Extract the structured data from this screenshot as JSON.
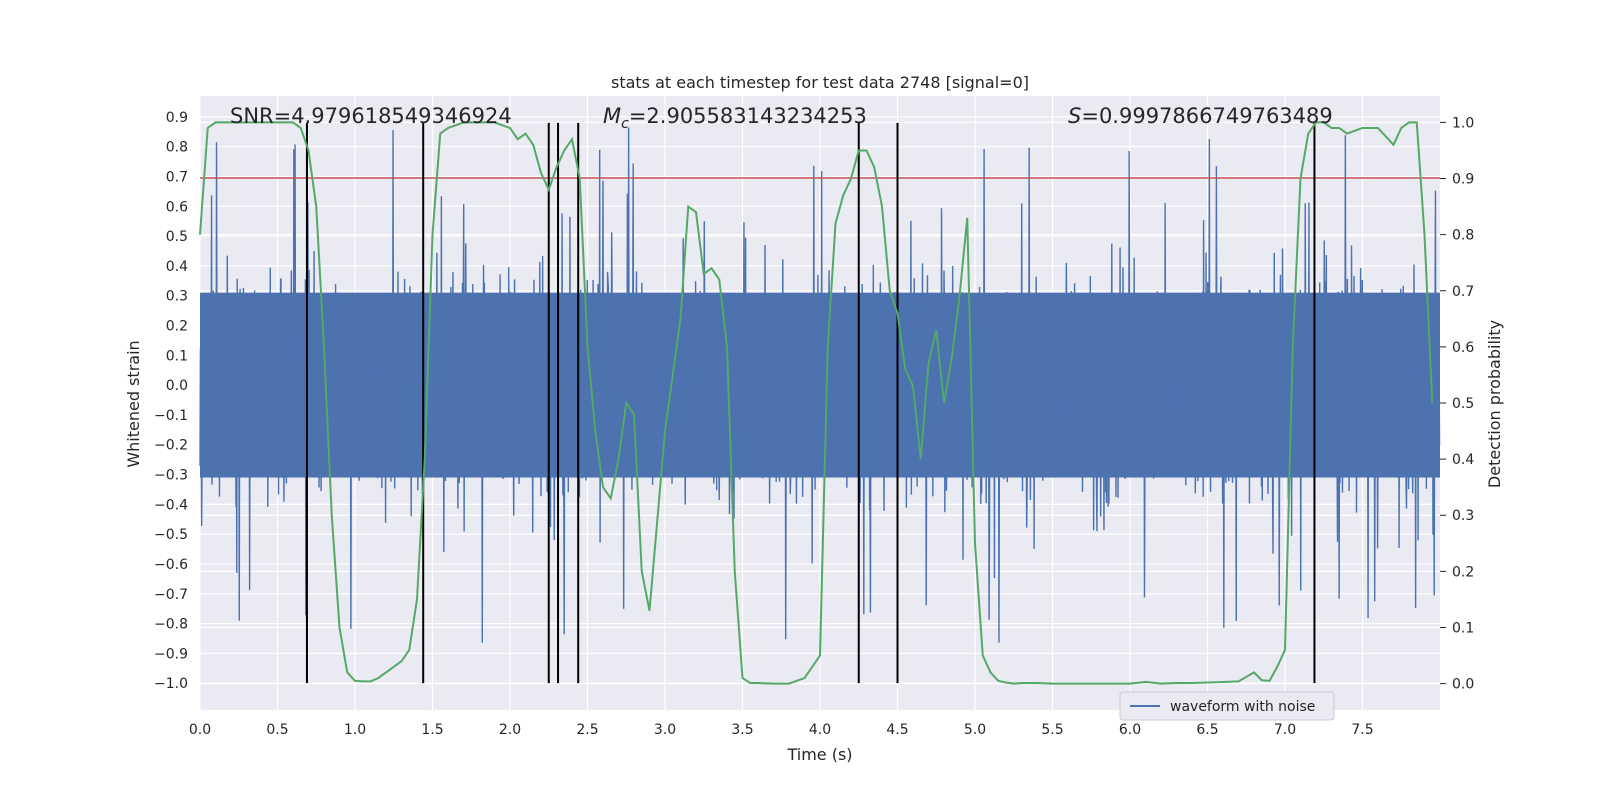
{
  "chart_data": {
    "type": "line",
    "title": "stats at each timestep for test data 2748 [signal=0]",
    "xlabel": "Time (s)",
    "ylabel": "Whitened strain",
    "y2label": "Detection probability",
    "xlim": [
      0.0,
      8.0
    ],
    "ylim": [
      -1.09,
      0.97
    ],
    "y2lim": [
      -0.047,
      1.047
    ],
    "x_ticks": [
      "0.0",
      "0.5",
      "1.0",
      "1.5",
      "2.0",
      "2.5",
      "3.0",
      "3.5",
      "4.0",
      "4.5",
      "5.0",
      "5.5",
      "6.0",
      "6.5",
      "7.0",
      "7.5"
    ],
    "y_ticks": [
      "0.9",
      "0.8",
      "0.7",
      "0.6",
      "0.5",
      "0.4",
      "0.3",
      "0.2",
      "0.1",
      "0.0",
      "−0.1",
      "−0.2",
      "−0.3",
      "−0.4",
      "−0.5",
      "−0.6",
      "−0.7",
      "−0.8",
      "−0.9",
      "−1.0"
    ],
    "y2_ticks": [
      "1.0",
      "0.9",
      "0.8",
      "0.7",
      "0.6",
      "0.5",
      "0.4",
      "0.3",
      "0.2",
      "0.1",
      "0.0"
    ],
    "grid": true,
    "legend_position": "lower-right",
    "annotations": {
      "snr": "SNR=4.979618549346924",
      "mc_symbol": "M",
      "mc_sub": "c",
      "mc_value": "=2.905583143234253",
      "s_symbol": "S",
      "s_value": "=0.9997866749763489"
    },
    "series": [
      {
        "name": "waveform with noise",
        "axis": "left",
        "color": "#4c72b0",
        "noise_envelope": {
          "body_upper": 0.31,
          "body_lower": -0.31,
          "typical_peak": 0.5,
          "max": 0.87,
          "min": -0.99
        }
      },
      {
        "name": "",
        "axis": "right",
        "color": "#55a868",
        "x": [
          0.0,
          0.05,
          0.1,
          0.2,
          0.3,
          0.4,
          0.5,
          0.6,
          0.65,
          0.7,
          0.75,
          0.8,
          0.85,
          0.9,
          0.95,
          1.0,
          1.05,
          1.1,
          1.15,
          1.2,
          1.25,
          1.3,
          1.35,
          1.4,
          1.45,
          1.5,
          1.55,
          1.6,
          1.7,
          1.8,
          1.9,
          2.0,
          2.05,
          2.1,
          2.15,
          2.2,
          2.25,
          2.3,
          2.35,
          2.4,
          2.45,
          2.5,
          2.55,
          2.6,
          2.65,
          2.7,
          2.75,
          2.8,
          2.85,
          2.9,
          3.0,
          3.1,
          3.15,
          3.2,
          3.25,
          3.3,
          3.35,
          3.4,
          3.45,
          3.5,
          3.55,
          3.6,
          3.7,
          3.8,
          3.9,
          4.0,
          4.05,
          4.1,
          4.15,
          4.2,
          4.25,
          4.3,
          4.35,
          4.4,
          4.45,
          4.5,
          4.55,
          4.6,
          4.65,
          4.7,
          4.75,
          4.8,
          4.85,
          4.9,
          4.95,
          5.0,
          5.05,
          5.1,
          5.15,
          5.2,
          5.25,
          5.3,
          5.4,
          5.5,
          5.6,
          5.7,
          5.8,
          5.9,
          6.0,
          6.1,
          6.2,
          6.3,
          6.4,
          6.5,
          6.6,
          6.7,
          6.8,
          6.85,
          6.9,
          6.95,
          7.0,
          7.05,
          7.1,
          7.15,
          7.2,
          7.25,
          7.3,
          7.35,
          7.4,
          7.5,
          7.6,
          7.7,
          7.75,
          7.8,
          7.85,
          7.9,
          7.95
        ],
        "values": [
          0.8,
          0.99,
          1.0,
          1.0,
          1.0,
          1.0,
          1.0,
          1.0,
          0.99,
          0.95,
          0.85,
          0.6,
          0.3,
          0.1,
          0.02,
          0.005,
          0.004,
          0.004,
          0.01,
          0.02,
          0.03,
          0.04,
          0.06,
          0.15,
          0.4,
          0.8,
          0.98,
          0.99,
          1.0,
          1.0,
          1.0,
          0.99,
          0.97,
          0.98,
          0.96,
          0.91,
          0.88,
          0.92,
          0.95,
          0.97,
          0.9,
          0.6,
          0.45,
          0.35,
          0.33,
          0.4,
          0.5,
          0.48,
          0.2,
          0.13,
          0.45,
          0.65,
          0.85,
          0.84,
          0.73,
          0.74,
          0.72,
          0.6,
          0.2,
          0.01,
          0.001,
          0.001,
          0.0,
          0.0,
          0.01,
          0.05,
          0.6,
          0.82,
          0.87,
          0.9,
          0.95,
          0.95,
          0.92,
          0.85,
          0.7,
          0.66,
          0.56,
          0.53,
          0.4,
          0.57,
          0.63,
          0.5,
          0.58,
          0.69,
          0.83,
          0.25,
          0.05,
          0.02,
          0.005,
          0.002,
          0.0,
          0.001,
          0.001,
          0.0,
          0.0,
          0.0,
          0.0,
          0.0,
          0.0,
          0.003,
          0.0,
          0.001,
          0.001,
          0.002,
          0.003,
          0.004,
          0.02,
          0.006,
          0.005,
          0.03,
          0.06,
          0.6,
          0.9,
          0.98,
          1.0,
          1.0,
          0.99,
          0.99,
          0.98,
          0.99,
          0.99,
          0.96,
          0.99,
          1.0,
          1.0,
          0.8,
          0.5
        ]
      }
    ],
    "threshold": {
      "axis": "left",
      "value": 0.695,
      "color": "#c44e52"
    },
    "vertical_markers_x": [
      0.69,
      1.44,
      2.25,
      2.31,
      2.44,
      4.25,
      4.5,
      7.19
    ],
    "vertical_markers_range": [
      -1.0,
      0.88
    ],
    "colors": {
      "background": "#eaeaf2",
      "grid": "#ffffff",
      "markers": "#000000",
      "text": "#262626"
    }
  }
}
